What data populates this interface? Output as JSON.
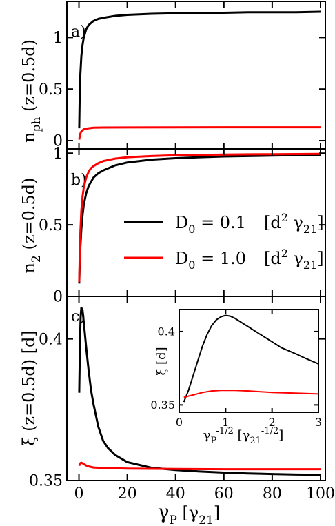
{
  "colors": {
    "black": "#000000",
    "red": "#ff0000"
  },
  "chart_data": [
    {
      "panel": "a)",
      "type": "line",
      "xlim": [
        -5,
        102
      ],
      "ylim": [
        -0.08,
        1.35
      ],
      "xticks": [
        0,
        20,
        40,
        60,
        80,
        100
      ],
      "yticks": [
        0,
        0.5,
        1
      ],
      "yticklabels": [
        "0",
        "0.5",
        "1"
      ],
      "ylabel": "n_ph (z=0.5d)",
      "ylabel_main": "n",
      "ylabel_sub": "ph",
      "ylabel_rest": " (z=0.5d)",
      "series": [
        {
          "color": "#000000",
          "x": [
            0.1,
            0.3,
            0.6,
            1,
            1.5,
            2,
            3,
            4,
            5,
            6,
            8,
            10,
            15,
            20,
            30,
            40,
            50,
            60,
            70,
            80,
            90,
            100
          ],
          "y": [
            0.12,
            0.42,
            0.65,
            0.82,
            0.93,
            1.0,
            1.08,
            1.12,
            1.14,
            1.16,
            1.18,
            1.19,
            1.21,
            1.22,
            1.23,
            1.235,
            1.24,
            1.24,
            1.245,
            1.245,
            1.245,
            1.25
          ]
        },
        {
          "color": "#ff0000",
          "x": [
            0.1,
            0.3,
            0.6,
            1,
            2,
            4,
            6,
            10,
            20,
            40,
            60,
            80,
            100
          ],
          "y": [
            0.01,
            0.04,
            0.07,
            0.09,
            0.11,
            0.12,
            0.125,
            0.127,
            0.128,
            0.129,
            0.13,
            0.13,
            0.13
          ]
        }
      ]
    },
    {
      "panel": "b)",
      "type": "line",
      "xlim": [
        -5,
        102
      ],
      "ylim": [
        0,
        1.03
      ],
      "xticks": [
        0,
        20,
        40,
        60,
        80,
        100
      ],
      "yticks": [
        0,
        0.5,
        1
      ],
      "yticklabels": [
        "0",
        "0.5",
        "1"
      ],
      "ylabel": "n_2 (z=0.5d)",
      "ylabel_main": "n",
      "ylabel_sub": "2",
      "ylabel_rest": " (z=0.5d)",
      "legend": [
        {
          "label_main": "D",
          "label_sub": "0",
          "label_value": " = 0.1",
          "label_unit": "[d",
          "label_sup": "2",
          "label_gamma": " γ",
          "label_gsub": "21",
          "label_close": "]",
          "color": "#000000"
        },
        {
          "label_main": "D",
          "label_sub": "0",
          "label_value": " = 1.0",
          "label_unit": "[d",
          "label_sup": "2",
          "label_gamma": " γ",
          "label_gsub": "21",
          "label_close": "]",
          "color": "#ff0000"
        }
      ],
      "series": [
        {
          "color": "#000000",
          "x": [
            0.1,
            0.3,
            0.6,
            1,
            1.5,
            2,
            3,
            4,
            5,
            6,
            8,
            10,
            15,
            20,
            30,
            40,
            50,
            60,
            70,
            80,
            90,
            100
          ],
          "y": [
            0.09,
            0.22,
            0.35,
            0.47,
            0.57,
            0.64,
            0.72,
            0.77,
            0.8,
            0.83,
            0.86,
            0.88,
            0.915,
            0.935,
            0.955,
            0.965,
            0.972,
            0.977,
            0.98,
            0.983,
            0.986,
            0.988
          ]
        },
        {
          "color": "#ff0000",
          "x": [
            0.1,
            0.3,
            0.6,
            1,
            1.5,
            2,
            3,
            4,
            5,
            6,
            8,
            10,
            15,
            20,
            30,
            40,
            50,
            60,
            70,
            80,
            90,
            100
          ],
          "y": [
            0.1,
            0.28,
            0.45,
            0.6,
            0.7,
            0.76,
            0.83,
            0.87,
            0.895,
            0.91,
            0.93,
            0.945,
            0.962,
            0.972,
            0.98,
            0.985,
            0.988,
            0.99,
            0.992,
            0.993,
            0.994,
            0.995
          ]
        }
      ]
    },
    {
      "panel": "c)",
      "type": "line",
      "xlim": [
        -5,
        102
      ],
      "ylim": [
        0.35,
        0.415
      ],
      "xticks": [
        0,
        20,
        40,
        60,
        80,
        100
      ],
      "xticklabels": [
        "0",
        "20",
        "40",
        "60",
        "80",
        "100"
      ],
      "yticks": [
        0.35,
        0.4
      ],
      "yticklabels": [
        "0.35",
        "0.4"
      ],
      "ylabel": "ξ (z=0.5d) [d]",
      "ylabel_text": "ξ (z=0.5d)   [d]",
      "xlabel_main": "γ",
      "xlabel_sub": "P",
      "xlabel_rest": "  [γ",
      "xlabel_sub2": "21",
      "xlabel_close": "]",
      "series": [
        {
          "color": "#000000",
          "x": [
            0.1,
            0.3,
            0.5,
            0.7,
            1,
            1.5,
            2,
            3,
            4,
            5,
            6,
            8,
            10,
            12,
            15,
            20,
            30,
            40,
            50,
            60,
            70,
            80,
            90,
            100
          ],
          "y": [
            0.381,
            0.392,
            0.402,
            0.408,
            0.411,
            0.41,
            0.406,
            0.397,
            0.389,
            0.382,
            0.377,
            0.369,
            0.364,
            0.3615,
            0.359,
            0.3565,
            0.3545,
            0.3537,
            0.3532,
            0.3528,
            0.3525,
            0.3523,
            0.3521,
            0.352
          ]
        },
        {
          "color": "#ff0000",
          "x": [
            0.1,
            0.3,
            0.6,
            1,
            1.5,
            2,
            3,
            4,
            6,
            10,
            20,
            40,
            60,
            80,
            100
          ],
          "y": [
            0.3552,
            0.3558,
            0.3561,
            0.3563,
            0.3561,
            0.3558,
            0.3553,
            0.355,
            0.3546,
            0.3544,
            0.3542,
            0.3541,
            0.354,
            0.354,
            0.354
          ]
        }
      ]
    },
    {
      "panel": "inset",
      "type": "line",
      "xlim": [
        0,
        3
      ],
      "ylim": [
        0.345,
        0.415
      ],
      "xticks": [
        0,
        1,
        2,
        3
      ],
      "xticklabels": [
        "0",
        "1",
        "2",
        "3"
      ],
      "yticks": [
        0.35,
        0.4
      ],
      "yticklabels": [
        "0.35",
        "0.4"
      ],
      "ylabel": "ξ [d]",
      "xlabel_main": "γ",
      "xlabel_sub": "P",
      "xlabel_sup": "-1/2",
      "xlabel_rest": " [γ",
      "xlabel_sub2": "21",
      "xlabel_sup2": "-1/2",
      "xlabel_close": "]",
      "series": [
        {
          "color": "#000000",
          "x": [
            0.1,
            0.2,
            0.3,
            0.4,
            0.5,
            0.6,
            0.7,
            0.8,
            0.9,
            1,
            1.1,
            1.2,
            1.3,
            1.4,
            1.5,
            1.6,
            1.8,
            2,
            2.2,
            2.5,
            2.7,
            3
          ],
          "y": [
            0.352,
            0.36,
            0.37,
            0.38,
            0.39,
            0.398,
            0.404,
            0.408,
            0.41,
            0.411,
            0.4105,
            0.409,
            0.407,
            0.405,
            0.403,
            0.401,
            0.397,
            0.393,
            0.389,
            0.385,
            0.382,
            0.378
          ]
        },
        {
          "color": "#ff0000",
          "x": [
            0.1,
            0.3,
            0.5,
            0.7,
            0.9,
            1,
            1.2,
            1.5,
            2,
            2.5,
            3
          ],
          "y": [
            0.3552,
            0.3568,
            0.3585,
            0.3595,
            0.3599,
            0.36,
            0.3599,
            0.3595,
            0.3585,
            0.358,
            0.3575
          ]
        }
      ]
    }
  ]
}
